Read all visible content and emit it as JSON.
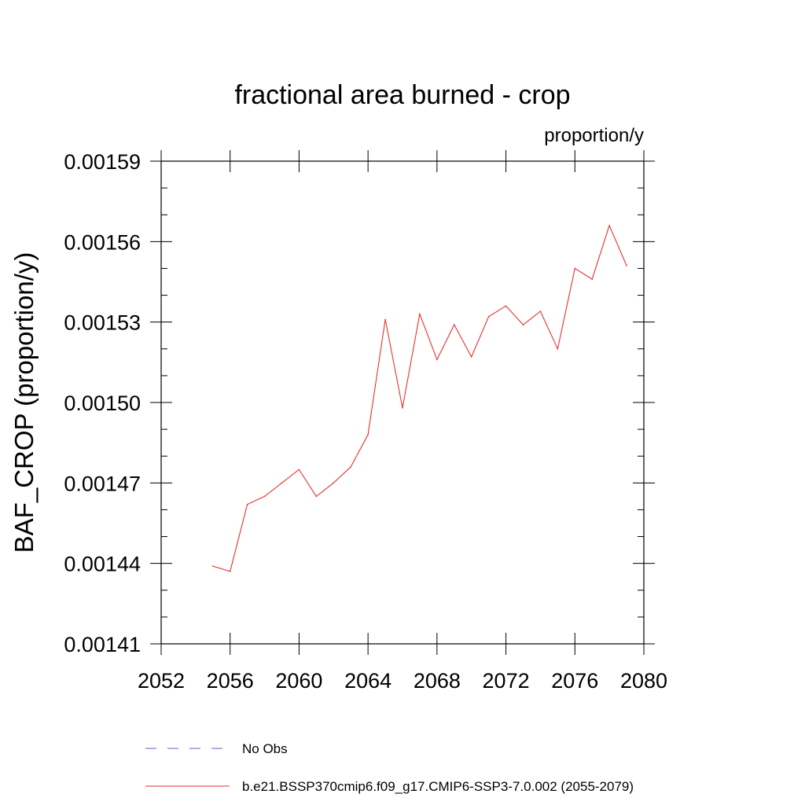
{
  "chart_data": {
    "type": "line",
    "title": "fractional area burned - crop",
    "units_label": "proportion/y",
    "ylabel": "BAF_CROP  (proportion/y)",
    "xlabel": "",
    "xlim": [
      2052,
      2080
    ],
    "ylim": [
      0.00141,
      0.00159
    ],
    "xticks": [
      2052,
      2056,
      2060,
      2064,
      2068,
      2072,
      2076,
      2080
    ],
    "xtick_labels": [
      "2052",
      "2056",
      "2060",
      "2064",
      "2068",
      "2072",
      "2076",
      "2080"
    ],
    "yticks": [
      0.00141,
      0.00144,
      0.00147,
      0.0015,
      0.00153,
      0.00156,
      0.00159
    ],
    "ytick_labels": [
      "0.00141",
      "0.00144",
      "0.00147",
      "0.00150",
      "0.00153",
      "0.00156",
      "0.00159"
    ],
    "grid": false,
    "legend_placement": "bottom",
    "legend": [
      {
        "label": "No Obs",
        "color": "#6a5acd",
        "style": "dashed"
      },
      {
        "label": "b.e21.BSSP370cmip6.f09_g17.CMIP6-SSP3-7.0.002 (2055-2079)",
        "color": "#e8312f",
        "style": "solid"
      }
    ],
    "series": [
      {
        "name": "b.e21.BSSP370cmip6.f09_g17.CMIP6-SSP3-7.0.002 (2055-2079)",
        "color": "#e8312f",
        "x": [
          2055,
          2056,
          2057,
          2058,
          2059,
          2060,
          2061,
          2062,
          2063,
          2064,
          2065,
          2066,
          2067,
          2068,
          2069,
          2070,
          2071,
          2072,
          2073,
          2074,
          2075,
          2076,
          2077,
          2078,
          2079
        ],
        "values": [
          0.001439,
          0.001437,
          0.001462,
          0.001465,
          0.00147,
          0.001475,
          0.001465,
          0.00147,
          0.001476,
          0.001488,
          0.001531,
          0.001498,
          0.001533,
          0.001516,
          0.001529,
          0.001517,
          0.001532,
          0.001536,
          0.001529,
          0.001534,
          0.00152,
          0.00155,
          0.001546,
          0.001566,
          0.001551
        ]
      }
    ]
  }
}
